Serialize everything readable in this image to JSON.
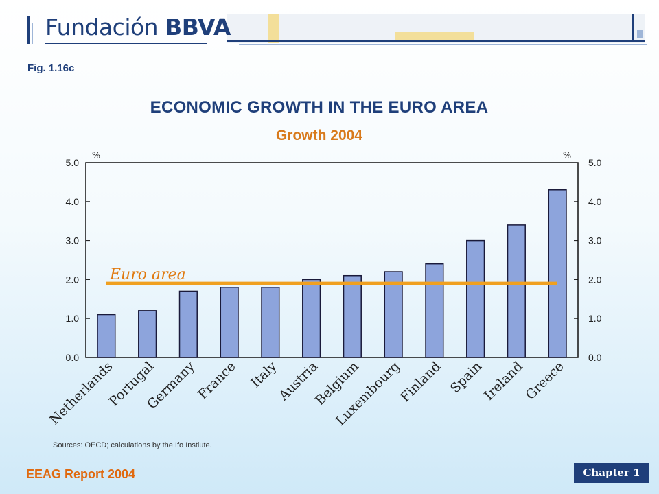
{
  "header": {
    "logo_text_regular": "Fundación",
    "logo_text_bold": "BBVA",
    "fig_label": "Fig. 1.16c"
  },
  "chart_data": {
    "type": "bar",
    "title": "ECONOMIC GROWTH IN THE EURO AREA",
    "subtitle": "Growth 2004",
    "left_unit": "%",
    "right_unit": "%",
    "categories": [
      "Netherlands",
      "Portugal",
      "Germany",
      "France",
      "Italy",
      "Austria",
      "Belgium",
      "Luxembourg",
      "Finland",
      "Spain",
      "Ireland",
      "Greece"
    ],
    "values": [
      1.1,
      1.2,
      1.7,
      1.8,
      1.8,
      2.0,
      2.1,
      2.2,
      2.4,
      3.0,
      3.4,
      4.3
    ],
    "ylim": [
      0,
      5
    ],
    "yticks": [
      "0.0",
      "1.0",
      "2.0",
      "3.0",
      "4.0",
      "5.0"
    ],
    "reference_line": {
      "label": "Euro area",
      "value": 1.9
    },
    "colors": {
      "bar": "#8da4dc",
      "bar_edge": "#1a1a3a",
      "reference": "#f0a020",
      "reference_label": "#e07a10"
    },
    "grid": false
  },
  "footer": {
    "source": "Sources: OECD; calculations by the Ifo Instiute.",
    "report": "EEAG Report 2004",
    "chapter": "Chapter 1"
  }
}
